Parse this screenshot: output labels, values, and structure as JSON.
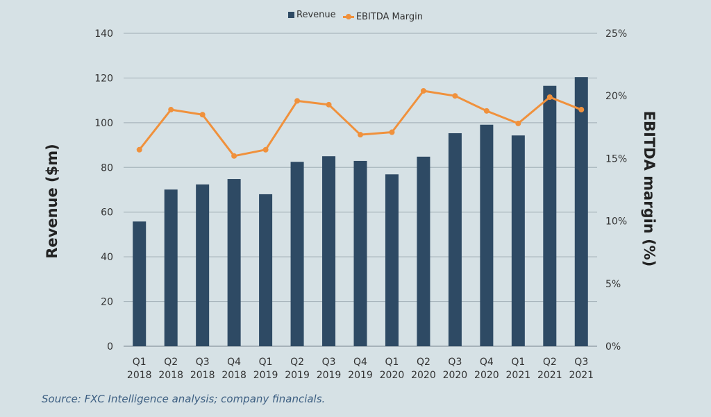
{
  "chart_data": {
    "type": "bar+line",
    "categories": [
      "Q1 2018",
      "Q2 2018",
      "Q3 2018",
      "Q4 2018",
      "Q1 2019",
      "Q2 2019",
      "Q3 2019",
      "Q4 2019",
      "Q1 2020",
      "Q2 2020",
      "Q3 2020",
      "Q4 2020",
      "Q1 2021",
      "Q2 2021",
      "Q3 2021"
    ],
    "category_lines": [
      [
        "Q1",
        "2018"
      ],
      [
        "Q2",
        "2018"
      ],
      [
        "Q3",
        "2018"
      ],
      [
        "Q4",
        "2018"
      ],
      [
        "Q1",
        "2019"
      ],
      [
        "Q2",
        "2019"
      ],
      [
        "Q3",
        "2019"
      ],
      [
        "Q4",
        "2019"
      ],
      [
        "Q1",
        "2020"
      ],
      [
        "Q2",
        "2020"
      ],
      [
        "Q3",
        "2020"
      ],
      [
        "Q4",
        "2020"
      ],
      [
        "Q1",
        "2021"
      ],
      [
        "Q2",
        "2021"
      ],
      [
        "Q3",
        "2021"
      ]
    ],
    "series": [
      {
        "name": "Revenue",
        "type": "bar",
        "axis": "left",
        "color": "#2e4a64",
        "values": [
          55.8,
          70.1,
          72.4,
          74.8,
          68.0,
          82.5,
          85.0,
          82.9,
          76.9,
          84.8,
          95.3,
          99.1,
          94.3,
          116.5,
          120.4
        ]
      },
      {
        "name": "EBITDA Margin",
        "type": "line",
        "axis": "right",
        "color": "#f0913c",
        "values": [
          15.7,
          18.9,
          18.5,
          15.2,
          15.7,
          19.6,
          19.3,
          16.9,
          17.1,
          20.4,
          20.0,
          18.8,
          17.8,
          19.9,
          18.9
        ]
      }
    ],
    "ylabel": "Revenue ($m)",
    "ylim": [
      0,
      140
    ],
    "yticks": [
      "0",
      "20",
      "40",
      "60",
      "80",
      "100",
      "120",
      "140"
    ],
    "y2label": "EBITDA margin (%)",
    "y2lim": [
      0,
      25
    ],
    "y2ticks": [
      "0%",
      "5%",
      "10%",
      "15%",
      "20%",
      "25%"
    ],
    "grid": true,
    "legend": "top-center"
  },
  "source": "Source: FXC Intelligence analysis; company financials."
}
